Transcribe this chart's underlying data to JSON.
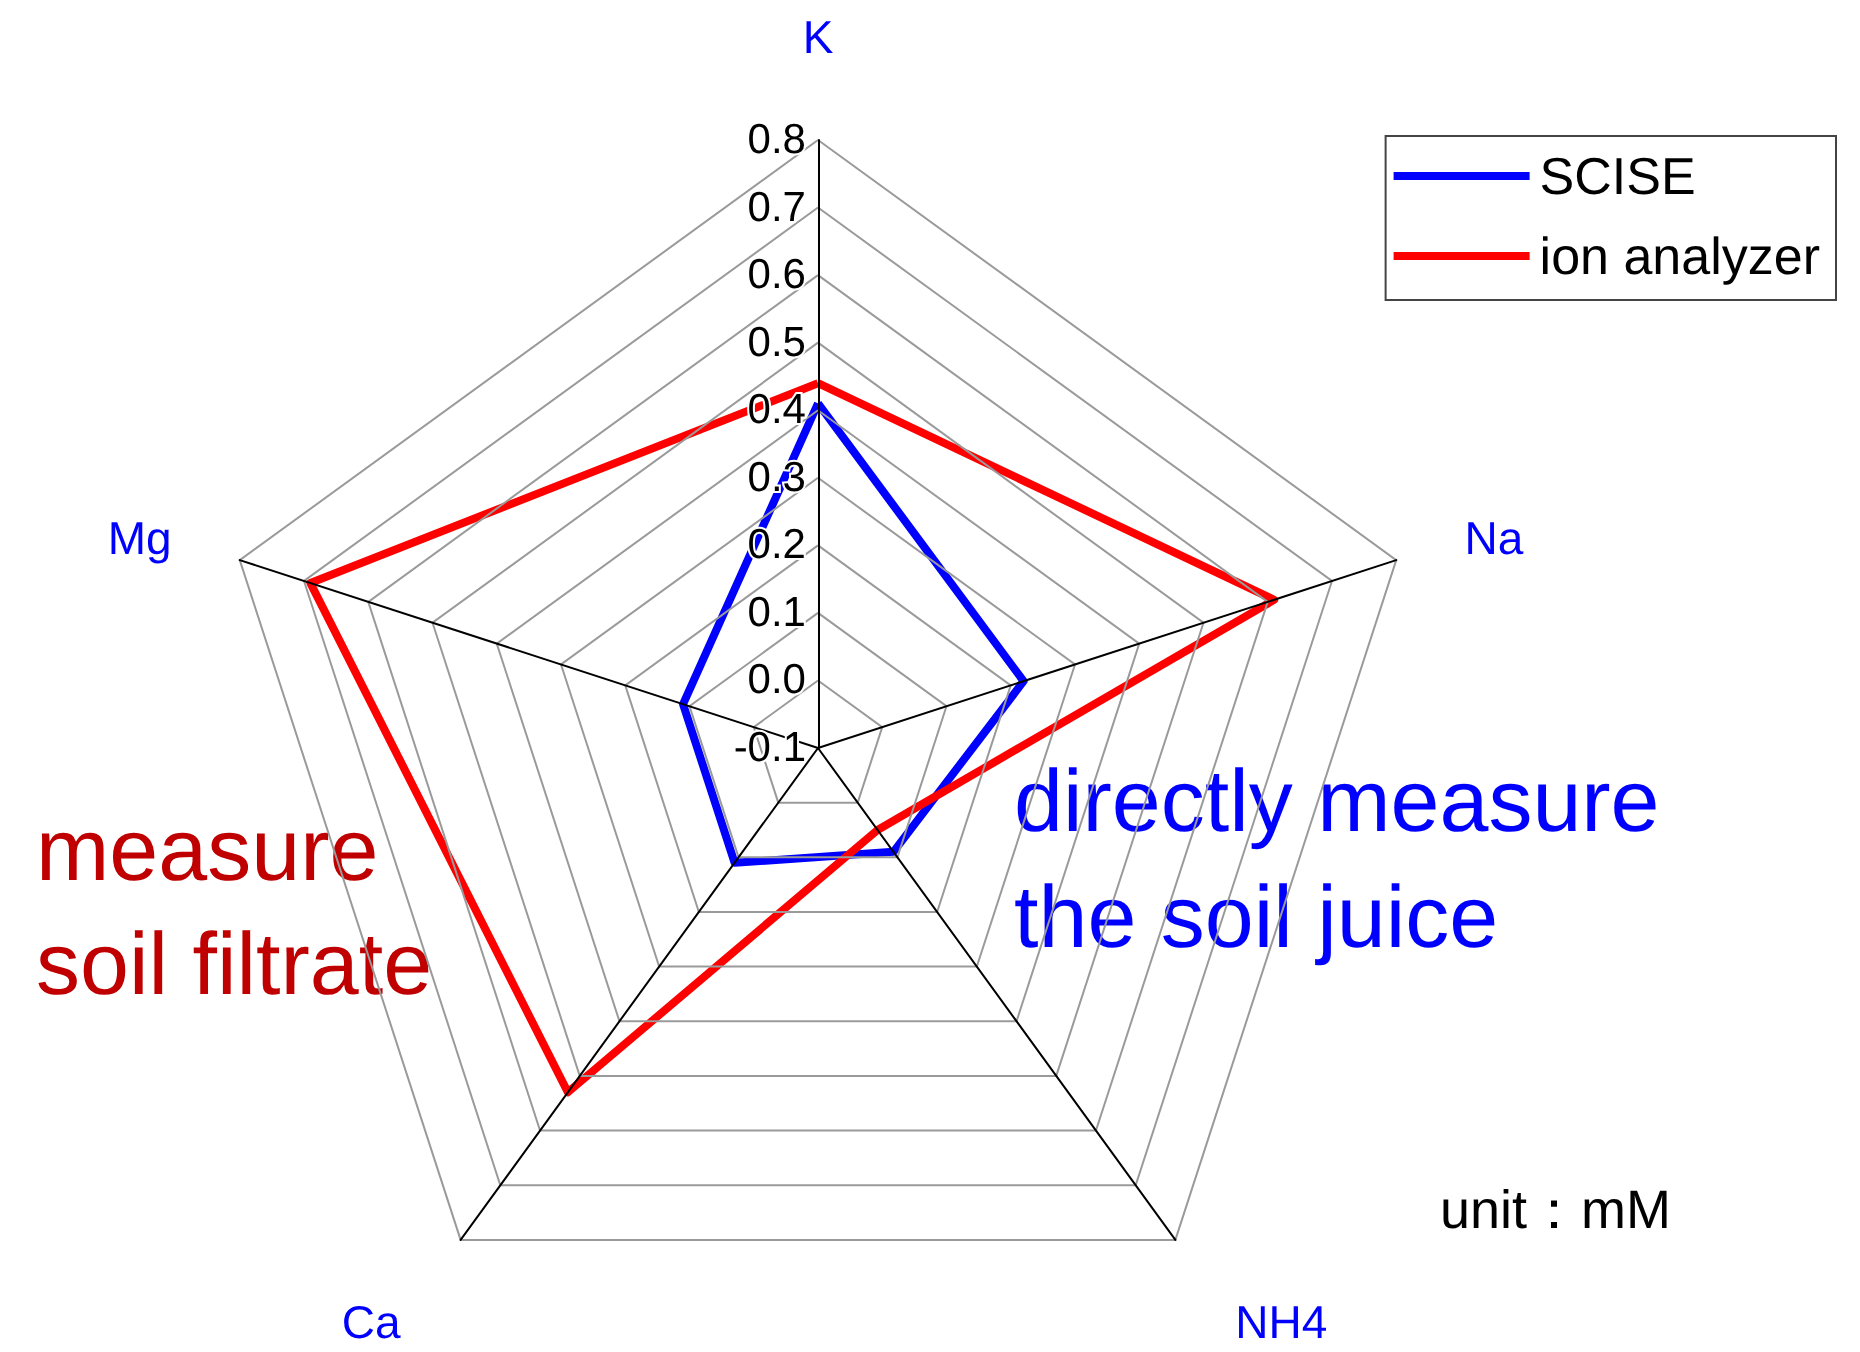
{
  "chart_data": {
    "type": "radar",
    "categories": [
      "K",
      "Na",
      "NH4",
      "Ca",
      "Mg"
    ],
    "series": [
      {
        "name": "SCISE",
        "color": "#0000ff",
        "values": [
          0.41,
          0.22,
          0.09,
          0.11,
          0.11
        ]
      },
      {
        "name": "ion analyzer",
        "color": "#ff0000",
        "values": [
          0.44,
          0.61,
          0.05,
          0.53,
          0.69
        ]
      }
    ],
    "ylim": [
      -0.1,
      0.8
    ],
    "yticks": [
      -0.1,
      {
        "value": 0,
        "label": "0.0"
      },
      0.1,
      0.2,
      0.3,
      0.4,
      0.5,
      0.6,
      0.7,
      0.8
    ],
    "grid": true,
    "legend": "top right",
    "marker": "none",
    "line_style": "solid",
    "annotations": [
      "measure\nsoil filtrate",
      "directly measure\nthe soil juice",
      "unit：mM"
    ]
  }
}
